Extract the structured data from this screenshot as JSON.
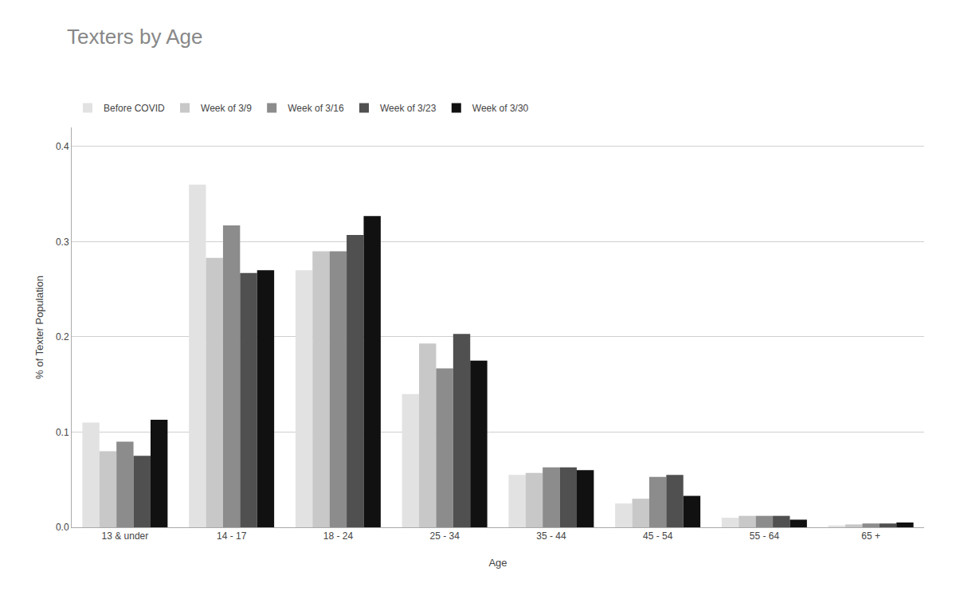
{
  "chart_data": {
    "type": "bar",
    "title": "Texters by Age",
    "xlabel": "Age",
    "ylabel": "% of Texter Population",
    "categories": [
      "13 & under",
      "14 - 17",
      "18 - 24",
      "25 - 34",
      "35 - 44",
      "45 - 54",
      "55 - 64",
      "65 +"
    ],
    "series": [
      {
        "name": "Before COVID",
        "color": "#e2e2e2",
        "values": [
          0.11,
          0.36,
          0.27,
          0.14,
          0.055,
          0.025,
          0.01,
          0.002
        ]
      },
      {
        "name": "Week of 3/9",
        "color": "#c8c8c8",
        "values": [
          0.08,
          0.283,
          0.29,
          0.193,
          0.057,
          0.03,
          0.012,
          0.003
        ]
      },
      {
        "name": "Week of 3/16",
        "color": "#8c8c8c",
        "values": [
          0.09,
          0.317,
          0.29,
          0.167,
          0.063,
          0.053,
          0.012,
          0.004
        ]
      },
      {
        "name": "Week of 3/23",
        "color": "#505050",
        "values": [
          0.075,
          0.267,
          0.307,
          0.203,
          0.063,
          0.055,
          0.012,
          0.004
        ]
      },
      {
        "name": "Week of 3/30",
        "color": "#111111",
        "values": [
          0.113,
          0.27,
          0.327,
          0.175,
          0.06,
          0.033,
          0.008,
          0.005
        ]
      }
    ],
    "ylim": [
      0,
      0.42
    ],
    "yticks": [
      {
        "value": 0,
        "label": "0.0"
      },
      0.1,
      0.2,
      0.3,
      0.4
    ],
    "grid": true,
    "legend": "upper left"
  }
}
